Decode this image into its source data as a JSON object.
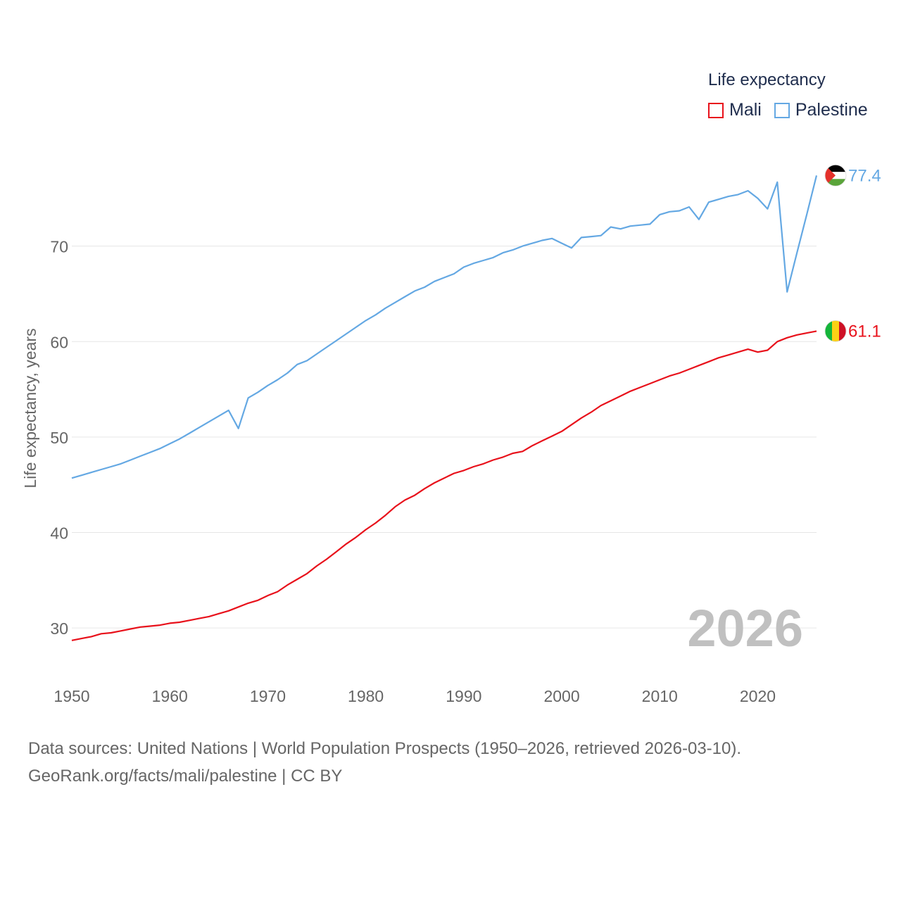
{
  "legend": {
    "title": "Life expectancy",
    "items": [
      {
        "label": "Mali",
        "color": "#e8111b"
      },
      {
        "label": "Palestine",
        "color": "#64a8e3"
      }
    ]
  },
  "sources": {
    "line1": "Data sources: United Nations | World Population Prospects (1950–2026, retrieved 2026-03-10).",
    "line2": "GeoRank.org/facts/mali/palestine | CC BY"
  },
  "chart_data": {
    "type": "line",
    "ylabel": "Life expectancy, years",
    "xlabel": "",
    "year_label": "2026",
    "xlim": [
      1950,
      2026
    ],
    "ylim": [
      25,
      80
    ],
    "x_ticks": [
      1950,
      1960,
      1970,
      1980,
      1990,
      2000,
      2010,
      2020
    ],
    "y_ticks": [
      30,
      40,
      50,
      60,
      70
    ],
    "grid": true,
    "series": [
      {
        "name": "Palestine",
        "color": "#64a8e3",
        "end_label": "77.4",
        "x": [
          1950,
          1951,
          1952,
          1953,
          1954,
          1955,
          1956,
          1957,
          1958,
          1959,
          1960,
          1961,
          1962,
          1963,
          1964,
          1965,
          1966,
          1967,
          1968,
          1969,
          1970,
          1971,
          1972,
          1973,
          1974,
          1975,
          1976,
          1977,
          1978,
          1979,
          1980,
          1981,
          1982,
          1983,
          1984,
          1985,
          1986,
          1987,
          1988,
          1989,
          1990,
          1991,
          1992,
          1993,
          1994,
          1995,
          1996,
          1997,
          1998,
          1999,
          2000,
          2001,
          2002,
          2003,
          2004,
          2005,
          2006,
          2007,
          2008,
          2009,
          2010,
          2011,
          2012,
          2013,
          2014,
          2015,
          2016,
          2017,
          2018,
          2019,
          2020,
          2021,
          2022,
          2023,
          2024,
          2025,
          2026
        ],
        "values": [
          45.7,
          46.0,
          46.3,
          46.6,
          46.9,
          47.2,
          47.6,
          48.0,
          48.4,
          48.8,
          49.3,
          49.8,
          50.4,
          51.0,
          51.6,
          52.2,
          52.8,
          50.9,
          54.1,
          54.7,
          55.4,
          56.0,
          56.7,
          57.6,
          58.0,
          58.7,
          59.4,
          60.1,
          60.8,
          61.5,
          62.2,
          62.8,
          63.5,
          64.1,
          64.7,
          65.3,
          65.7,
          66.3,
          66.7,
          67.1,
          67.8,
          68.2,
          68.5,
          68.8,
          69.3,
          69.6,
          70.0,
          70.3,
          70.6,
          70.8,
          70.3,
          69.8,
          70.9,
          71.0,
          71.1,
          72.0,
          71.8,
          72.1,
          72.2,
          72.3,
          73.3,
          73.6,
          73.7,
          74.1,
          72.8,
          74.6,
          74.9,
          75.2,
          75.4,
          75.8,
          75.0,
          73.9,
          76.7,
          65.2,
          69.3,
          73.3,
          77.4
        ]
      },
      {
        "name": "Mali",
        "color": "#e8111b",
        "end_label": "61.1",
        "x": [
          1950,
          1951,
          1952,
          1953,
          1954,
          1955,
          1956,
          1957,
          1958,
          1959,
          1960,
          1961,
          1962,
          1963,
          1964,
          1965,
          1966,
          1967,
          1968,
          1969,
          1970,
          1971,
          1972,
          1973,
          1974,
          1975,
          1976,
          1977,
          1978,
          1979,
          1980,
          1981,
          1982,
          1983,
          1984,
          1985,
          1986,
          1987,
          1988,
          1989,
          1990,
          1991,
          1992,
          1993,
          1994,
          1995,
          1996,
          1997,
          1998,
          1999,
          2000,
          2001,
          2002,
          2003,
          2004,
          2005,
          2006,
          2007,
          2008,
          2009,
          2010,
          2011,
          2012,
          2013,
          2014,
          2015,
          2016,
          2017,
          2018,
          2019,
          2020,
          2021,
          2022,
          2023,
          2024,
          2025,
          2026
        ],
        "values": [
          28.7,
          28.9,
          29.1,
          29.4,
          29.5,
          29.7,
          29.9,
          30.1,
          30.2,
          30.3,
          30.5,
          30.6,
          30.8,
          31.0,
          31.2,
          31.5,
          31.8,
          32.2,
          32.6,
          32.9,
          33.4,
          33.8,
          34.5,
          35.1,
          35.7,
          36.5,
          37.2,
          38.0,
          38.8,
          39.5,
          40.3,
          41.0,
          41.8,
          42.7,
          43.4,
          43.9,
          44.6,
          45.2,
          45.7,
          46.2,
          46.5,
          46.9,
          47.2,
          47.6,
          47.9,
          48.3,
          48.5,
          49.1,
          49.6,
          50.1,
          50.6,
          51.3,
          52.0,
          52.6,
          53.3,
          53.8,
          54.3,
          54.8,
          55.2,
          55.6,
          56.0,
          56.4,
          56.7,
          57.1,
          57.5,
          57.9,
          58.3,
          58.6,
          58.9,
          59.2,
          58.9,
          59.1,
          60.0,
          60.4,
          60.7,
          60.9,
          61.1
        ]
      }
    ]
  }
}
